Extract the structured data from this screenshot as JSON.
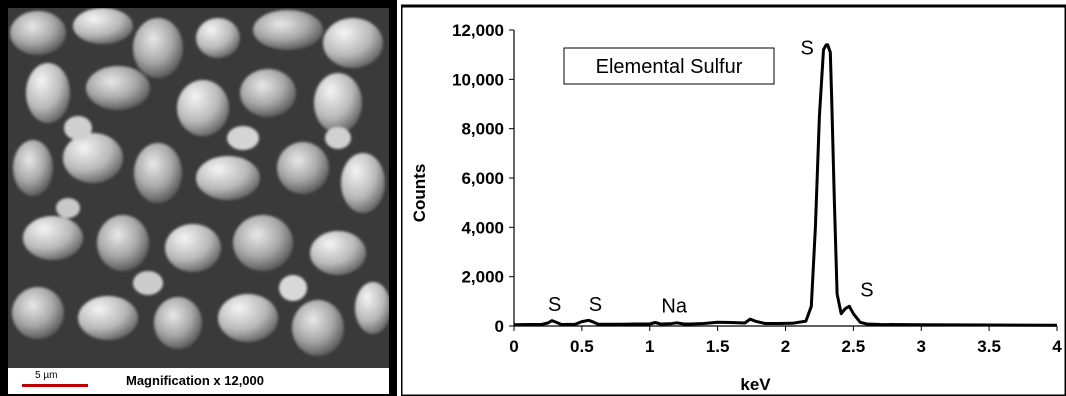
{
  "sem": {
    "scale_bar_label": "5 µm",
    "magnification_label": "Magnification x 12,000"
  },
  "chart_data": {
    "type": "line",
    "title": "",
    "xlabel": "keV",
    "ylabel": "Counts",
    "xlim": [
      0,
      4
    ],
    "ylim": [
      0,
      12000
    ],
    "x_ticks": [
      0,
      0.5,
      1,
      1.5,
      2,
      2.5,
      3,
      3.5,
      4
    ],
    "x_tick_labels": [
      "0",
      "0.5",
      "1",
      "1.5",
      "2",
      "2.5",
      "3",
      "3.5",
      "4"
    ],
    "y_ticks": [
      0,
      2000,
      4000,
      6000,
      8000,
      10000,
      12000
    ],
    "y_tick_labels": [
      "0",
      "2,000",
      "4,000",
      "6,000",
      "8,000",
      "10,000",
      "12,000"
    ],
    "legend_box": "Elemental Sulfur",
    "line_color": "#000000",
    "series": [
      {
        "x": [
          0,
          0.1,
          0.2,
          0.25,
          0.28,
          0.31,
          0.35,
          0.45,
          0.5,
          0.55,
          0.58,
          0.62,
          0.7,
          0.8,
          0.9,
          1.0,
          1.04,
          1.08,
          1.15,
          1.2,
          1.25,
          1.3,
          1.4,
          1.5,
          1.6,
          1.7,
          1.74,
          1.78,
          1.85,
          1.95,
          2.05,
          2.15,
          2.19,
          2.22,
          2.25,
          2.28,
          2.3,
          2.31,
          2.33,
          2.34,
          2.36,
          2.38,
          2.41,
          2.44,
          2.47,
          2.5,
          2.55,
          2.6,
          2.7,
          3.0,
          3.5,
          4.0
        ],
        "y": [
          50,
          60,
          60,
          120,
          220,
          150,
          60,
          70,
          180,
          230,
          170,
          70,
          70,
          70,
          80,
          80,
          140,
          80,
          90,
          130,
          80,
          80,
          100,
          150,
          140,
          120,
          280,
          190,
          100,
          100,
          110,
          200,
          800,
          4000,
          8500,
          11200,
          11400,
          11400,
          11100,
          9200,
          5000,
          1300,
          500,
          700,
          800,
          500,
          150,
          80,
          60,
          50,
          40,
          30
        ]
      }
    ],
    "annotations": [
      {
        "text": "S",
        "x": 0.3,
        "y": 600
      },
      {
        "text": "S",
        "x": 0.6,
        "y": 600
      },
      {
        "text": "Na",
        "x": 1.18,
        "y": 550
      },
      {
        "text": "S",
        "x": 2.16,
        "y": 11000
      },
      {
        "text": "S",
        "x": 2.6,
        "y": 1200
      }
    ]
  }
}
